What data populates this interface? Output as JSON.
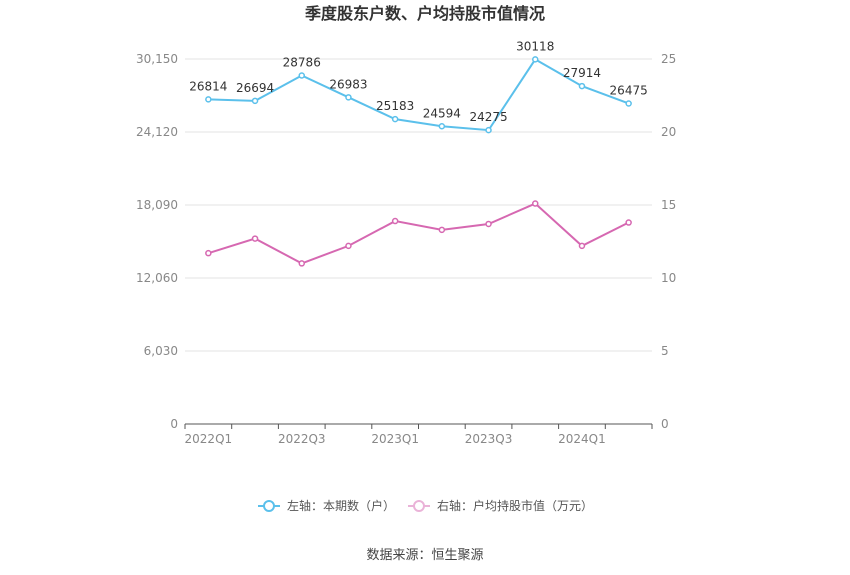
{
  "chart_data": {
    "type": "line",
    "title": "季度股东户数、户均持股市值情况",
    "categories": [
      "2022Q1",
      "2022Q2",
      "2022Q3",
      "2022Q4",
      "2023Q1",
      "2023Q2",
      "2023Q3",
      "2023Q4",
      "2024Q1",
      "2024Q2"
    ],
    "x_tick_labels": [
      "2022Q1",
      "2022Q3",
      "2023Q1",
      "2023Q3",
      "2024Q1"
    ],
    "left_axis": {
      "ylim": [
        0,
        30150
      ],
      "ticks": [
        "0",
        "6,030",
        "12,060",
        "18,090",
        "24,120",
        "30,150"
      ]
    },
    "right_axis": {
      "ylim": [
        0,
        25
      ],
      "ticks": [
        "0",
        "5",
        "10",
        "15",
        "20",
        "25"
      ]
    },
    "grid": true,
    "legend_position": "bottom",
    "series": [
      {
        "name": "左轴：本期数（户）",
        "axis": "left",
        "color": "#5bc0eb",
        "values": [
          26814,
          26694,
          28786,
          26983,
          25183,
          24594,
          24275,
          30118,
          27914,
          26475
        ],
        "labels": [
          "26814",
          "26694",
          "28786",
          "26983",
          "25183",
          "24594",
          "24275",
          "30118",
          "27914",
          "26475"
        ]
      },
      {
        "name": "右轴：户均持股市值（万元）",
        "axis": "right",
        "color": "#d668b1",
        "values": [
          11.7,
          12.7,
          11.0,
          12.2,
          13.9,
          13.3,
          13.7,
          15.1,
          12.2,
          13.8
        ]
      }
    ]
  },
  "footer": {
    "source": "数据来源：恒生聚源"
  }
}
